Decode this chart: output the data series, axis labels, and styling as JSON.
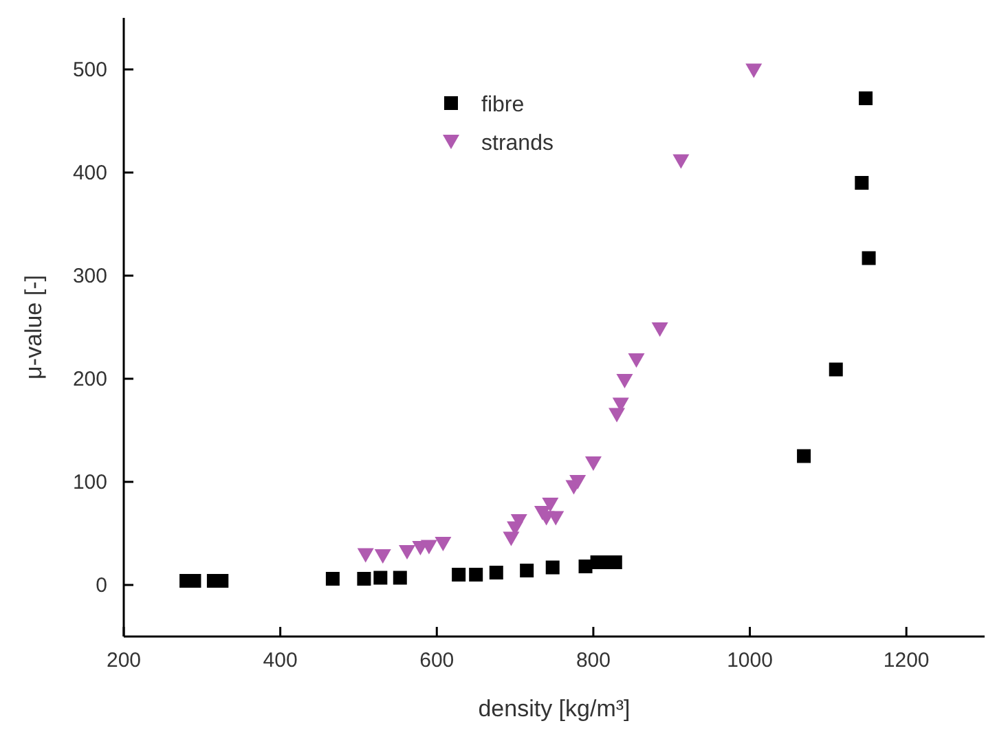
{
  "chart_data": {
    "type": "scatter",
    "xlabel": "density [kg/m³]",
    "ylabel": "μ-value [-]",
    "xlim": [
      200,
      1300
    ],
    "ylim": [
      -50,
      550
    ],
    "xticks": [
      200,
      400,
      600,
      800,
      1000,
      1200
    ],
    "yticks": [
      0,
      100,
      200,
      300,
      400,
      500
    ],
    "grid": false,
    "legend": "top left",
    "series": [
      {
        "name": "fibre",
        "color": "#000000",
        "marker": "square",
        "x": [
          280,
          290,
          315,
          325,
          467,
          507,
          528,
          553,
          628,
          650,
          676,
          715,
          748,
          790,
          805,
          815,
          828,
          1069,
          1110,
          1143,
          1152,
          1148
        ],
        "values": [
          4,
          4,
          4,
          4,
          6,
          6,
          7,
          7,
          10,
          10,
          12,
          14,
          17,
          18,
          22,
          22,
          22,
          125,
          209,
          390,
          317,
          472
        ]
      },
      {
        "name": "strands",
        "color": "#b05ab0",
        "marker": "triangle",
        "x": [
          509,
          531,
          562,
          579,
          590,
          608,
          695,
          700,
          705,
          735,
          740,
          745,
          752,
          775,
          780,
          800,
          830,
          835,
          840,
          855,
          885,
          912,
          1005
        ],
        "values": [
          29,
          28,
          32,
          36,
          37,
          40,
          45,
          55,
          62,
          70,
          65,
          78,
          65,
          95,
          100,
          118,
          165,
          175,
          198,
          218,
          248,
          411,
          499
        ]
      }
    ]
  }
}
